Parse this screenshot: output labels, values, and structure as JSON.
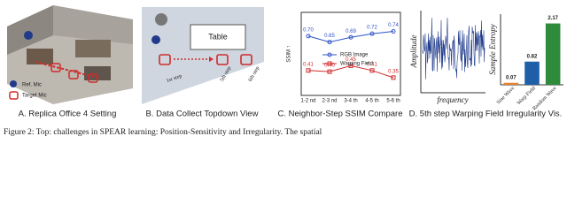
{
  "panels": {
    "a": {
      "caption": "A. Replica Office 4 Setting",
      "legend_ref": "Ref. Mic",
      "legend_target": "Target Mic"
    },
    "b": {
      "caption": "B. Data Collect Topdown View",
      "table": "Table",
      "step1": "1st step",
      "step5": "5th step",
      "step6": "6th step"
    },
    "c": {
      "caption": "C. Neighbor-Step SSIM Compare"
    },
    "d": {
      "caption": "D. 5th step Warping Field Irregularity Vis.",
      "wave_ylabel": "Amplitude",
      "wave_xlabel": "frequency"
    }
  },
  "figure_caption": "Figure 2: Top: challenges in SPEAR learning: Position-Sensitivity and Irregularity. The spatial",
  "chart_data": [
    {
      "type": "line",
      "y_label": "SSIM ↑",
      "categories": [
        "1-2 nd",
        "2-3 nd",
        "3-4 th",
        "4-5 th",
        "5-6 th"
      ],
      "series": [
        {
          "name": "RGB Image",
          "color": "#2f52c8",
          "values": [
            0.7,
            0.65,
            0.69,
            0.72,
            0.74
          ],
          "value_labels": [
            "0.70",
            "0.65",
            "0.69",
            "0.72",
            "0.74"
          ]
        },
        {
          "name": "Warping Field",
          "color": "#d02b2b",
          "values": [
            0.41,
            0.4,
            0.45,
            0.41,
            0.35
          ],
          "value_labels": [
            "0.41",
            "0.40",
            "0.45",
            "0.41",
            "0.35"
          ]
        }
      ],
      "ylim": [
        0.2,
        0.9
      ]
    },
    {
      "type": "bar",
      "y_label": "Sample Entropy",
      "categories": [
        "Sine Wave",
        "Warp Field",
        "Random Wave"
      ],
      "values": [
        0.07,
        0.82,
        2.17
      ],
      "colors": [
        "#e8822a",
        "#1f5fa8",
        "#2e8b3c"
      ],
      "ylim": [
        0,
        2.5
      ]
    }
  ]
}
